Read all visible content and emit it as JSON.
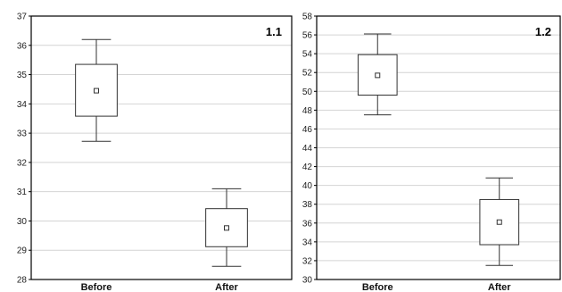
{
  "colors": {
    "grid": "#d4d4d4",
    "box": "#333333",
    "frame": "#000000",
    "background": "#ffffff"
  },
  "chart_data": [
    {
      "type": "box",
      "panel_label": "1.1",
      "categories": [
        "Before",
        "After"
      ],
      "ylim": [
        28,
        37
      ],
      "yticks": [
        28,
        29,
        30,
        31,
        32,
        33,
        34,
        35,
        36,
        37
      ],
      "grid": true,
      "boxes": [
        {
          "category": "Before",
          "mean": 34.45,
          "box_low": 33.58,
          "box_high": 35.35,
          "whisker_low": 32.72,
          "whisker_high": 36.2
        },
        {
          "category": "After",
          "mean": 29.76,
          "box_low": 29.12,
          "box_high": 30.42,
          "whisker_low": 28.45,
          "whisker_high": 31.1
        }
      ]
    },
    {
      "type": "box",
      "panel_label": "1.2",
      "categories": [
        "Before",
        "After"
      ],
      "ylim": [
        30,
        58
      ],
      "yticks": [
        30,
        32,
        34,
        36,
        38,
        40,
        42,
        44,
        46,
        48,
        50,
        52,
        54,
        56,
        58
      ],
      "grid": true,
      "boxes": [
        {
          "category": "Before",
          "mean": 51.7,
          "box_low": 49.6,
          "box_high": 53.9,
          "whisker_low": 47.5,
          "whisker_high": 56.1
        },
        {
          "category": "After",
          "mean": 36.1,
          "box_low": 33.7,
          "box_high": 38.5,
          "whisker_low": 31.5,
          "whisker_high": 40.8
        }
      ]
    }
  ]
}
